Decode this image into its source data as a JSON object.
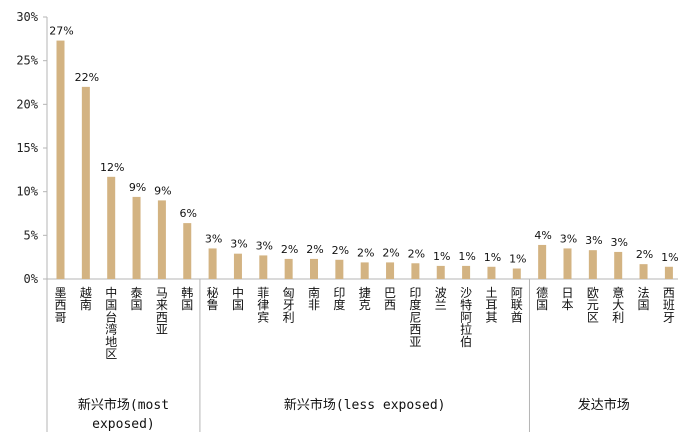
{
  "chart_data": {
    "type": "bar",
    "title": "",
    "ylabel": "",
    "xlabel": "",
    "ylim": [
      0,
      30
    ],
    "yticks": [
      "0%",
      "5%",
      "10%",
      "15%",
      "20%",
      "25%",
      "30%"
    ],
    "bar_color": "#D3B382",
    "grid": false,
    "categories": [
      "墨西哥",
      "越南",
      "中国台湾地区",
      "泰国",
      "马来西亚",
      "韩国",
      "秘鲁",
      "中国",
      "菲律宾",
      "匈牙利",
      "南非",
      "印度",
      "捷克",
      "巴西",
      "印度尼西亚",
      "波兰",
      "沙特阿拉伯",
      "土耳其",
      "阿联酋",
      "德国",
      "日本",
      "欧元区",
      "意大利",
      "法国",
      "西班牙"
    ],
    "values": [
      27.3,
      22.0,
      11.7,
      9.4,
      9.0,
      6.4,
      3.5,
      2.9,
      2.7,
      2.3,
      2.3,
      2.2,
      1.9,
      1.9,
      1.8,
      1.5,
      1.5,
      1.4,
      1.2,
      3.9,
      3.5,
      3.3,
      3.1,
      1.7,
      1.4
    ],
    "data_labels": [
      "27%",
      "22%",
      "12%",
      "9%",
      "9%",
      "6%",
      "3%",
      "3%",
      "3%",
      "2%",
      "2%",
      "2%",
      "2%",
      "2%",
      "2%",
      "1%",
      "1%",
      "1%",
      "1%",
      "4%",
      "3%",
      "3%",
      "3%",
      "2%",
      "1%"
    ],
    "groups": [
      {
        "name_lines": [
          "新兴市场(most",
          "exposed)"
        ],
        "count": 6
      },
      {
        "name_lines": [
          "新兴市场(less exposed)"
        ],
        "count": 13
      },
      {
        "name_lines": [
          "发达市场"
        ],
        "count": 6
      }
    ]
  }
}
